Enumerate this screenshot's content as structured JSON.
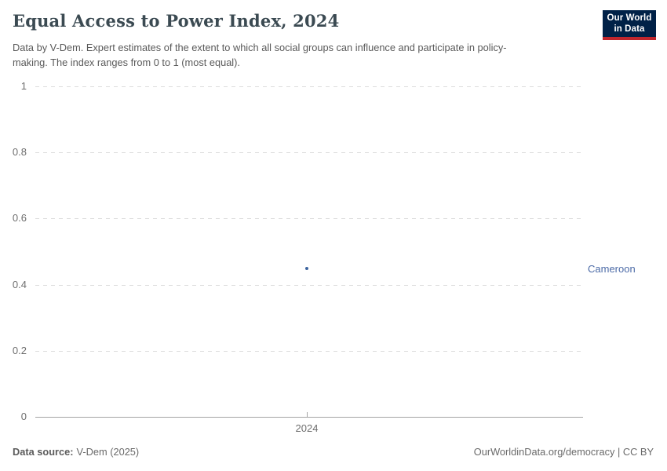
{
  "header": {
    "title": "Equal Access to Power Index, 2024",
    "subtitle": "Data by V-Dem. Expert estimates of the extent to which all social groups can influence and participate in policy-making. The index ranges from 0 to 1 (most equal).",
    "logo": {
      "line1": "Our World",
      "line2": "in Data",
      "bg_color": "#002147",
      "accent_color": "#c0262d"
    }
  },
  "chart_data": {
    "type": "scatter",
    "title": "Equal Access to Power Index, 2024",
    "x": [
      "2024"
    ],
    "series": [
      {
        "name": "Cameroon",
        "values": [
          0.45
        ],
        "color": "#3d649f",
        "label_color": "#4c6ba7"
      }
    ],
    "xlabel": "",
    "ylabel": "",
    "ylim": [
      0,
      1
    ],
    "yticks": [
      0,
      0.2,
      0.4,
      0.6,
      0.8,
      1
    ],
    "ytick_labels": [
      "0",
      "0.2",
      "0.4",
      "0.6",
      "0.8",
      "1"
    ],
    "grid": "horizontal-dashed",
    "legend": "entity-label-right"
  },
  "footer": {
    "source_label": "Data source:",
    "source_value": "V-Dem (2025)",
    "link_text": "OurWorldinData.org/democracy | CC BY"
  }
}
